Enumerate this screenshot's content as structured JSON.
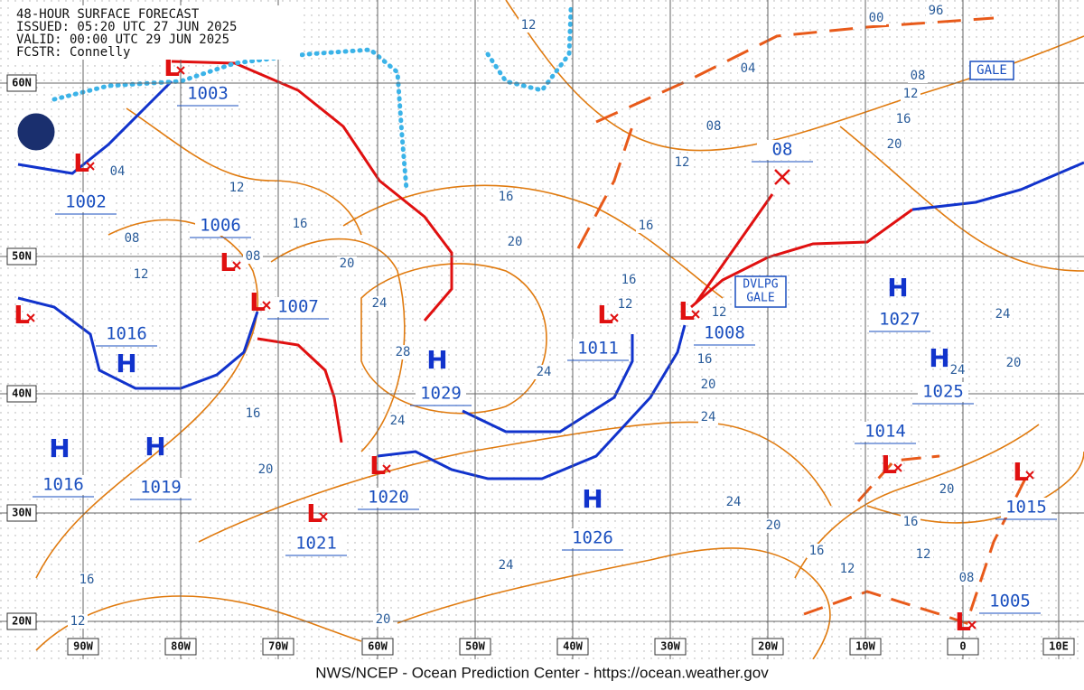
{
  "header": {
    "lines": [
      "48-HOUR SURFACE FORECAST",
      "ISSUED: 05:20 UTC 27 JUN 2025",
      "VALID: 00:00 UTC 29 JUN 2025",
      "FCSTR: Connelly"
    ]
  },
  "latitude_labels": [
    "60N",
    "50N",
    "40N",
    "30N",
    "20N"
  ],
  "longitude_labels": [
    "90W",
    "80W",
    "70W",
    "60W",
    "50W",
    "40W",
    "30W",
    "20W",
    "10W",
    "0",
    "10E"
  ],
  "systems": [
    {
      "symbol": "L",
      "pressure": "1003"
    },
    {
      "symbol": "L",
      "pressure": "1002"
    },
    {
      "symbol": "L",
      "pressure": "1006"
    },
    {
      "symbol": "L",
      "pressure": "1007"
    },
    {
      "symbol": "L"
    },
    {
      "symbol": "H",
      "pressure": "1016"
    },
    {
      "symbol": "H",
      "pressure": "1016"
    },
    {
      "symbol": "H",
      "pressure": "1019"
    },
    {
      "symbol": "L",
      "pressure": "1021"
    },
    {
      "symbol": "L",
      "pressure": "1020"
    },
    {
      "symbol": "H",
      "pressure": "1029"
    },
    {
      "symbol": "L",
      "pressure": "1011"
    },
    {
      "symbol": "L",
      "pressure": "1008"
    },
    {
      "pressure": "08"
    },
    {
      "symbol": "H",
      "pressure": "1026"
    },
    {
      "symbol": "H",
      "pressure": "1027"
    },
    {
      "symbol": "H",
      "pressure": "1025"
    },
    {
      "symbol": "L",
      "pressure": "1014"
    },
    {
      "symbol": "L",
      "pressure": "1015"
    },
    {
      "symbol": "L",
      "pressure": "1005"
    }
  ],
  "isobar_labels": [
    "12",
    "00",
    "96",
    "04",
    "08",
    "12",
    "16",
    "20",
    "08",
    "12",
    "16",
    "16",
    "20",
    "04",
    "12",
    "08",
    "08",
    "16",
    "20",
    "12",
    "24",
    "28",
    "16",
    "12",
    "12",
    "16",
    "20",
    "24",
    "24",
    "24",
    "16",
    "20",
    "24",
    "24",
    "20",
    "20",
    "16",
    "12",
    "12",
    "08",
    "16",
    "20",
    "24",
    "24",
    "20",
    "16",
    "12"
  ],
  "warnings": {
    "gale": "GALE",
    "developing_gale": [
      "DVLPG",
      "GALE"
    ]
  },
  "footer": "NWS/NCEP - Ocean Prediction Center - https://ocean.weather.gov"
}
